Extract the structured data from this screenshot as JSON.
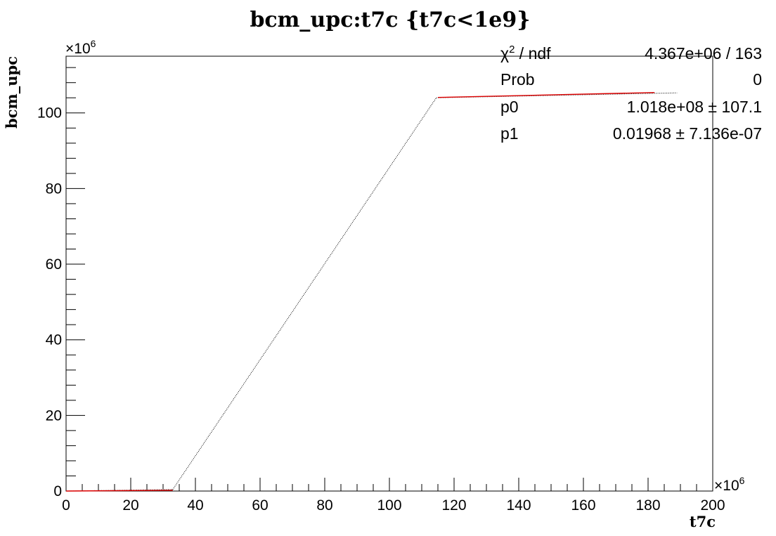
{
  "chart_data": {
    "type": "scatter",
    "title": "bcm_upc:t7c {t7c<1e9}",
    "xlabel": "t7c",
    "ylabel": "bcm_upc",
    "x_exponent_label": "×10",
    "x_exponent_power": "6",
    "y_exponent_label": "×10",
    "y_exponent_power": "6",
    "xlim": [
      0,
      200
    ],
    "ylim": [
      0,
      115
    ],
    "x_ticks": [
      0,
      20,
      40,
      60,
      80,
      100,
      120,
      140,
      160,
      180,
      200
    ],
    "x_tick_labels": [
      "0",
      "20",
      "40",
      "60",
      "80",
      "100",
      "120",
      "140",
      "160",
      "180",
      "200"
    ],
    "y_ticks": [
      0,
      20,
      40,
      60,
      80,
      100
    ],
    "y_tick_labels": [
      "0",
      "20",
      "40",
      "60",
      "80",
      "100"
    ],
    "grid": false,
    "series": [
      {
        "color": "#000000",
        "segments": [
          {
            "x": [
              0,
              33
            ],
            "y": [
              0,
              0.4
            ]
          },
          {
            "x": [
              33,
              114.5
            ],
            "y": [
              0.4,
              104
            ]
          },
          {
            "x": [
              114.5,
              189
            ],
            "y": [
              104,
              105.3
            ]
          }
        ]
      },
      {
        "color": "#dd0000",
        "segments": [
          {
            "x": [
              0,
              33
            ],
            "y": [
              0,
              0.2
            ]
          },
          {
            "x": [
              115,
              182
            ],
            "y": [
              104.1,
              105.4
            ]
          }
        ]
      }
    ],
    "stats": {
      "rows": [
        {
          "label_main": "χ",
          "label_sup": "2",
          "label_rest": " / ndf",
          "value": "4.367e+06 / 163"
        },
        {
          "label_main": "Prob",
          "label_sup": "",
          "label_rest": "",
          "value": "0"
        },
        {
          "label_main": "p0",
          "label_sup": "",
          "label_rest": "",
          "value": "1.018e+08 ± 107.1"
        },
        {
          "label_main": "p1",
          "label_sup": "",
          "label_rest": "",
          "value": "0.01968 ± 7.136e-07"
        }
      ]
    }
  }
}
